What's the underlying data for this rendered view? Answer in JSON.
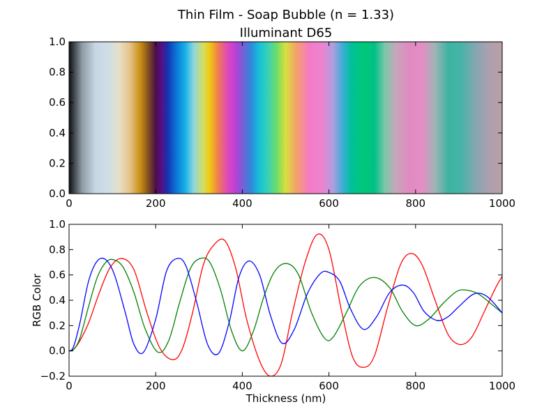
{
  "figure": {
    "title_line1": "Thin Film - Soap Bubble (n = 1.33)",
    "title_line2": "Illuminant D65"
  },
  "chart_data": [
    {
      "type": "heatmap",
      "name": "color-strip",
      "xlim": [
        0,
        1000
      ],
      "ylim": [
        0.0,
        1.0
      ],
      "xticks": [
        "0",
        "200",
        "400",
        "600",
        "800",
        "1000"
      ],
      "yticks": [
        "0.0",
        "0.2",
        "0.4",
        "0.6",
        "0.8",
        "1.0"
      ],
      "grid": false,
      "colors": [
        {
          "x": 0,
          "color": "#0d1014"
        },
        {
          "x": 30,
          "color": "#8f9aa5"
        },
        {
          "x": 60,
          "color": "#c6d6e3"
        },
        {
          "x": 90,
          "color": "#cfdde6"
        },
        {
          "x": 115,
          "color": "#e5e0c8"
        },
        {
          "x": 140,
          "color": "#e6c48a"
        },
        {
          "x": 165,
          "color": "#c98e12"
        },
        {
          "x": 185,
          "color": "#7a4a20"
        },
        {
          "x": 200,
          "color": "#4b0f4a"
        },
        {
          "x": 212,
          "color": "#5a0c80"
        },
        {
          "x": 228,
          "color": "#1733b0"
        },
        {
          "x": 248,
          "color": "#0a78d8"
        },
        {
          "x": 268,
          "color": "#15b0e6"
        },
        {
          "x": 288,
          "color": "#8fd6dc"
        },
        {
          "x": 310,
          "color": "#d3df60"
        },
        {
          "x": 325,
          "color": "#f0c810"
        },
        {
          "x": 345,
          "color": "#ef7a55"
        },
        {
          "x": 365,
          "color": "#e24ab8"
        },
        {
          "x": 385,
          "color": "#b840d8"
        },
        {
          "x": 400,
          "color": "#7a5ed5"
        },
        {
          "x": 420,
          "color": "#2f88da"
        },
        {
          "x": 440,
          "color": "#15c2d8"
        },
        {
          "x": 462,
          "color": "#40d3ae"
        },
        {
          "x": 480,
          "color": "#70dc66"
        },
        {
          "x": 500,
          "color": "#d8e040"
        },
        {
          "x": 525,
          "color": "#f5a06a"
        },
        {
          "x": 555,
          "color": "#f57ac6"
        },
        {
          "x": 585,
          "color": "#ec84cf"
        },
        {
          "x": 610,
          "color": "#ac9edf"
        },
        {
          "x": 632,
          "color": "#3aaed8"
        },
        {
          "x": 652,
          "color": "#00c098"
        },
        {
          "x": 680,
          "color": "#00c878"
        },
        {
          "x": 705,
          "color": "#00c088"
        },
        {
          "x": 730,
          "color": "#7ec7a8"
        },
        {
          "x": 755,
          "color": "#c7a6ba"
        },
        {
          "x": 785,
          "color": "#e08ac2"
        },
        {
          "x": 815,
          "color": "#e48ec4"
        },
        {
          "x": 845,
          "color": "#9fb4b6"
        },
        {
          "x": 875,
          "color": "#3eb4a0"
        },
        {
          "x": 905,
          "color": "#45b4a8"
        },
        {
          "x": 935,
          "color": "#7ea8b0"
        },
        {
          "x": 965,
          "color": "#a8a0b0"
        },
        {
          "x": 1000,
          "color": "#bca0a4"
        }
      ]
    },
    {
      "type": "line",
      "name": "rgb-curves",
      "xlabel": "Thickness (nm)",
      "ylabel": "RGB Color",
      "xlim": [
        0,
        1000
      ],
      "ylim": [
        -0.2,
        1.0
      ],
      "xticks": [
        "0",
        "200",
        "400",
        "600",
        "800",
        "1000"
      ],
      "yticks": [
        "−0.2",
        "0.0",
        "0.2",
        "0.4",
        "0.6",
        "0.8",
        "1.0"
      ],
      "grid": false,
      "series": [
        {
          "color": "#ff0000",
          "x": [
            0,
            10,
            25,
            45,
            70,
            95,
            122,
            150,
            180,
            210,
            240,
            262,
            285,
            310,
            335,
            360,
            385,
            410,
            440,
            465,
            490,
            515,
            545,
            573,
            600,
            630,
            655,
            680,
            705,
            735,
            765,
            790,
            815,
            845,
            875,
            903,
            930,
            960,
            985,
            1000
          ],
          "y": [
            0.0,
            0.01,
            0.08,
            0.22,
            0.46,
            0.66,
            0.73,
            0.64,
            0.3,
            0.02,
            -0.07,
            0.02,
            0.3,
            0.68,
            0.84,
            0.87,
            0.65,
            0.25,
            -0.08,
            -0.2,
            -0.1,
            0.29,
            0.7,
            0.92,
            0.8,
            0.3,
            -0.05,
            -0.13,
            -0.04,
            0.34,
            0.68,
            0.77,
            0.68,
            0.4,
            0.13,
            0.05,
            0.11,
            0.32,
            0.5,
            0.59
          ]
        },
        {
          "color": "#008000",
          "x": [
            0,
            10,
            25,
            45,
            65,
            85,
            103,
            125,
            150,
            175,
            205,
            230,
            255,
            280,
            303,
            325,
            350,
            375,
            400,
            425,
            450,
            475,
            503,
            530,
            560,
            590,
            610,
            640,
            670,
            705,
            740,
            770,
            800,
            830,
            865,
            895,
            918,
            945,
            975,
            1000
          ],
          "y": [
            0.0,
            0.01,
            0.1,
            0.35,
            0.58,
            0.7,
            0.72,
            0.66,
            0.46,
            0.18,
            -0.01,
            0.08,
            0.38,
            0.65,
            0.73,
            0.7,
            0.48,
            0.16,
            0.0,
            0.15,
            0.43,
            0.63,
            0.69,
            0.6,
            0.3,
            0.1,
            0.11,
            0.3,
            0.51,
            0.58,
            0.5,
            0.31,
            0.2,
            0.25,
            0.38,
            0.47,
            0.48,
            0.45,
            0.37,
            0.3
          ]
        },
        {
          "color": "#0000ff",
          "x": [
            0,
            10,
            25,
            45,
            65,
            85,
            105,
            130,
            150,
            172,
            200,
            225,
            250,
            270,
            295,
            320,
            345,
            370,
            392,
            415,
            440,
            465,
            492,
            520,
            550,
            580,
            600,
            625,
            650,
            680,
            710,
            740,
            770,
            795,
            820,
            850,
            875,
            900,
            935,
            965,
            1000
          ],
          "y": [
            0.0,
            0.03,
            0.22,
            0.55,
            0.71,
            0.72,
            0.6,
            0.3,
            0.05,
            -0.01,
            0.25,
            0.63,
            0.73,
            0.67,
            0.38,
            0.05,
            -0.02,
            0.23,
            0.58,
            0.71,
            0.6,
            0.28,
            0.06,
            0.17,
            0.45,
            0.61,
            0.62,
            0.55,
            0.33,
            0.17,
            0.27,
            0.46,
            0.52,
            0.46,
            0.31,
            0.24,
            0.27,
            0.35,
            0.45,
            0.43,
            0.3
          ]
        }
      ]
    }
  ]
}
